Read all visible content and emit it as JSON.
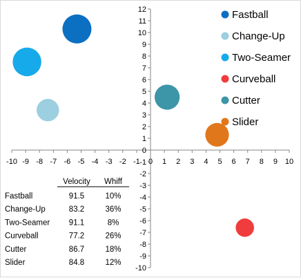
{
  "chart_data": {
    "type": "scatter",
    "title": "",
    "xlabel": "",
    "ylabel": "",
    "xlim": [
      -10,
      10
    ],
    "ylim": [
      -10,
      12
    ],
    "x_ticks": [
      -10,
      -9,
      -8,
      -7,
      -6,
      -5,
      -4,
      -3,
      -2,
      -1,
      0,
      1,
      2,
      3,
      4,
      5,
      6,
      7,
      8,
      9,
      10
    ],
    "y_ticks": [
      -10,
      -9,
      -8,
      -7,
      -6,
      -5,
      -4,
      -3,
      -2,
      -1,
      0,
      1,
      2,
      3,
      4,
      5,
      6,
      7,
      8,
      9,
      10,
      11,
      12
    ],
    "grid": false,
    "legend_position": "top-right",
    "series": [
      {
        "name": "Fastball",
        "color": "#0b6fc2",
        "points": [
          {
            "x": -5.3,
            "y": 10.3,
            "size": 91.5
          }
        ]
      },
      {
        "name": "Change-Up",
        "color": "#9ccfe0",
        "points": [
          {
            "x": -7.4,
            "y": 3.4,
            "size": 83.2
          }
        ]
      },
      {
        "name": "Two-Seamer",
        "color": "#17aaea",
        "points": [
          {
            "x": -8.9,
            "y": 7.5,
            "size": 91.1
          }
        ]
      },
      {
        "name": "Curveball",
        "color": "#f03c3c",
        "points": [
          {
            "x": 6.8,
            "y": -6.6,
            "size": 77.2
          }
        ]
      },
      {
        "name": "Cutter",
        "color": "#3d95a8",
        "points": [
          {
            "x": 1.2,
            "y": 4.5,
            "size": 86.7
          }
        ]
      },
      {
        "name": "Slider",
        "color": "#e1771b",
        "points": [
          {
            "x": 4.8,
            "y": 1.3,
            "size": 84.8
          }
        ]
      }
    ]
  },
  "table": {
    "headers": [
      "Velocity",
      "Whiff"
    ],
    "rows": [
      {
        "pitch": "Fastball",
        "velocity": "91.5",
        "whiff": "10%"
      },
      {
        "pitch": "Change-Up",
        "velocity": "83.2",
        "whiff": "36%"
      },
      {
        "pitch": "Two-Seamer",
        "velocity": "91.1",
        "whiff": "8%"
      },
      {
        "pitch": "Curveball",
        "velocity": "77.2",
        "whiff": "26%"
      },
      {
        "pitch": "Cutter",
        "velocity": "86.7",
        "whiff": "18%"
      },
      {
        "pitch": "Slider",
        "velocity": "84.8",
        "whiff": "12%"
      }
    ]
  }
}
